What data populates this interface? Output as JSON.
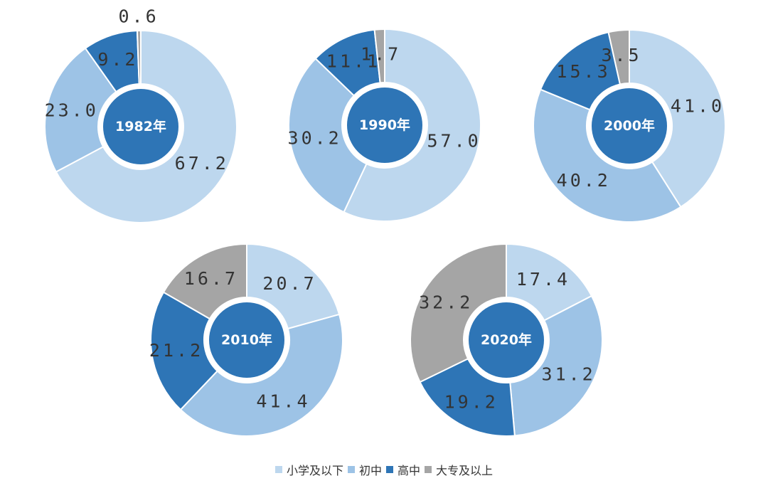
{
  "chart_data": [
    {
      "type": "pie",
      "center_label": "1982年",
      "categories": [
        "小学及以下",
        "初中",
        "高中",
        "大专及以上"
      ],
      "values": [
        67.2,
        23.0,
        9.2,
        0.6
      ],
      "value_labels": [
        "67.2",
        "23.0",
        "9.2",
        "0.6"
      ]
    },
    {
      "type": "pie",
      "center_label": "1990年",
      "categories": [
        "小学及以下",
        "初中",
        "高中",
        "大专及以上"
      ],
      "values": [
        57.0,
        30.2,
        11.1,
        1.7
      ],
      "value_labels": [
        "57.0",
        "30.2",
        "11.1",
        "1.7"
      ]
    },
    {
      "type": "pie",
      "center_label": "2000年",
      "categories": [
        "小学及以下",
        "初中",
        "高中",
        "大专及以上"
      ],
      "values": [
        41.0,
        40.2,
        15.3,
        3.5
      ],
      "value_labels": [
        "41.0",
        "40.2",
        "15.3",
        "3.5"
      ]
    },
    {
      "type": "pie",
      "center_label": "2010年",
      "categories": [
        "小学及以下",
        "初中",
        "高中",
        "大专及以上"
      ],
      "values": [
        20.7,
        41.4,
        21.2,
        16.7
      ],
      "value_labels": [
        "20.7",
        "41.4",
        "21.2",
        "16.7"
      ]
    },
    {
      "type": "pie",
      "center_label": "2020年",
      "categories": [
        "小学及以下",
        "初中",
        "高中",
        "大专及以上"
      ],
      "values": [
        17.4,
        31.2,
        19.2,
        32.2
      ],
      "value_labels": [
        "17.4",
        "31.2",
        "19.2",
        "32.2"
      ]
    }
  ],
  "legend": {
    "placement": "bottom-center",
    "items": [
      {
        "label": "小学及以下",
        "color": "#bdd7ee"
      },
      {
        "label": "初中",
        "color": "#9dc3e6"
      },
      {
        "label": "高中",
        "color": "#2e75b6"
      },
      {
        "label": "大专及以上",
        "color": "#a5a5a5"
      }
    ]
  },
  "colors": {
    "series": [
      "#bdd7ee",
      "#9dc3e6",
      "#2e75b6",
      "#a5a5a5"
    ],
    "center": "#2e75b6",
    "center_text": "#ffffff",
    "label_text": "#333333"
  }
}
